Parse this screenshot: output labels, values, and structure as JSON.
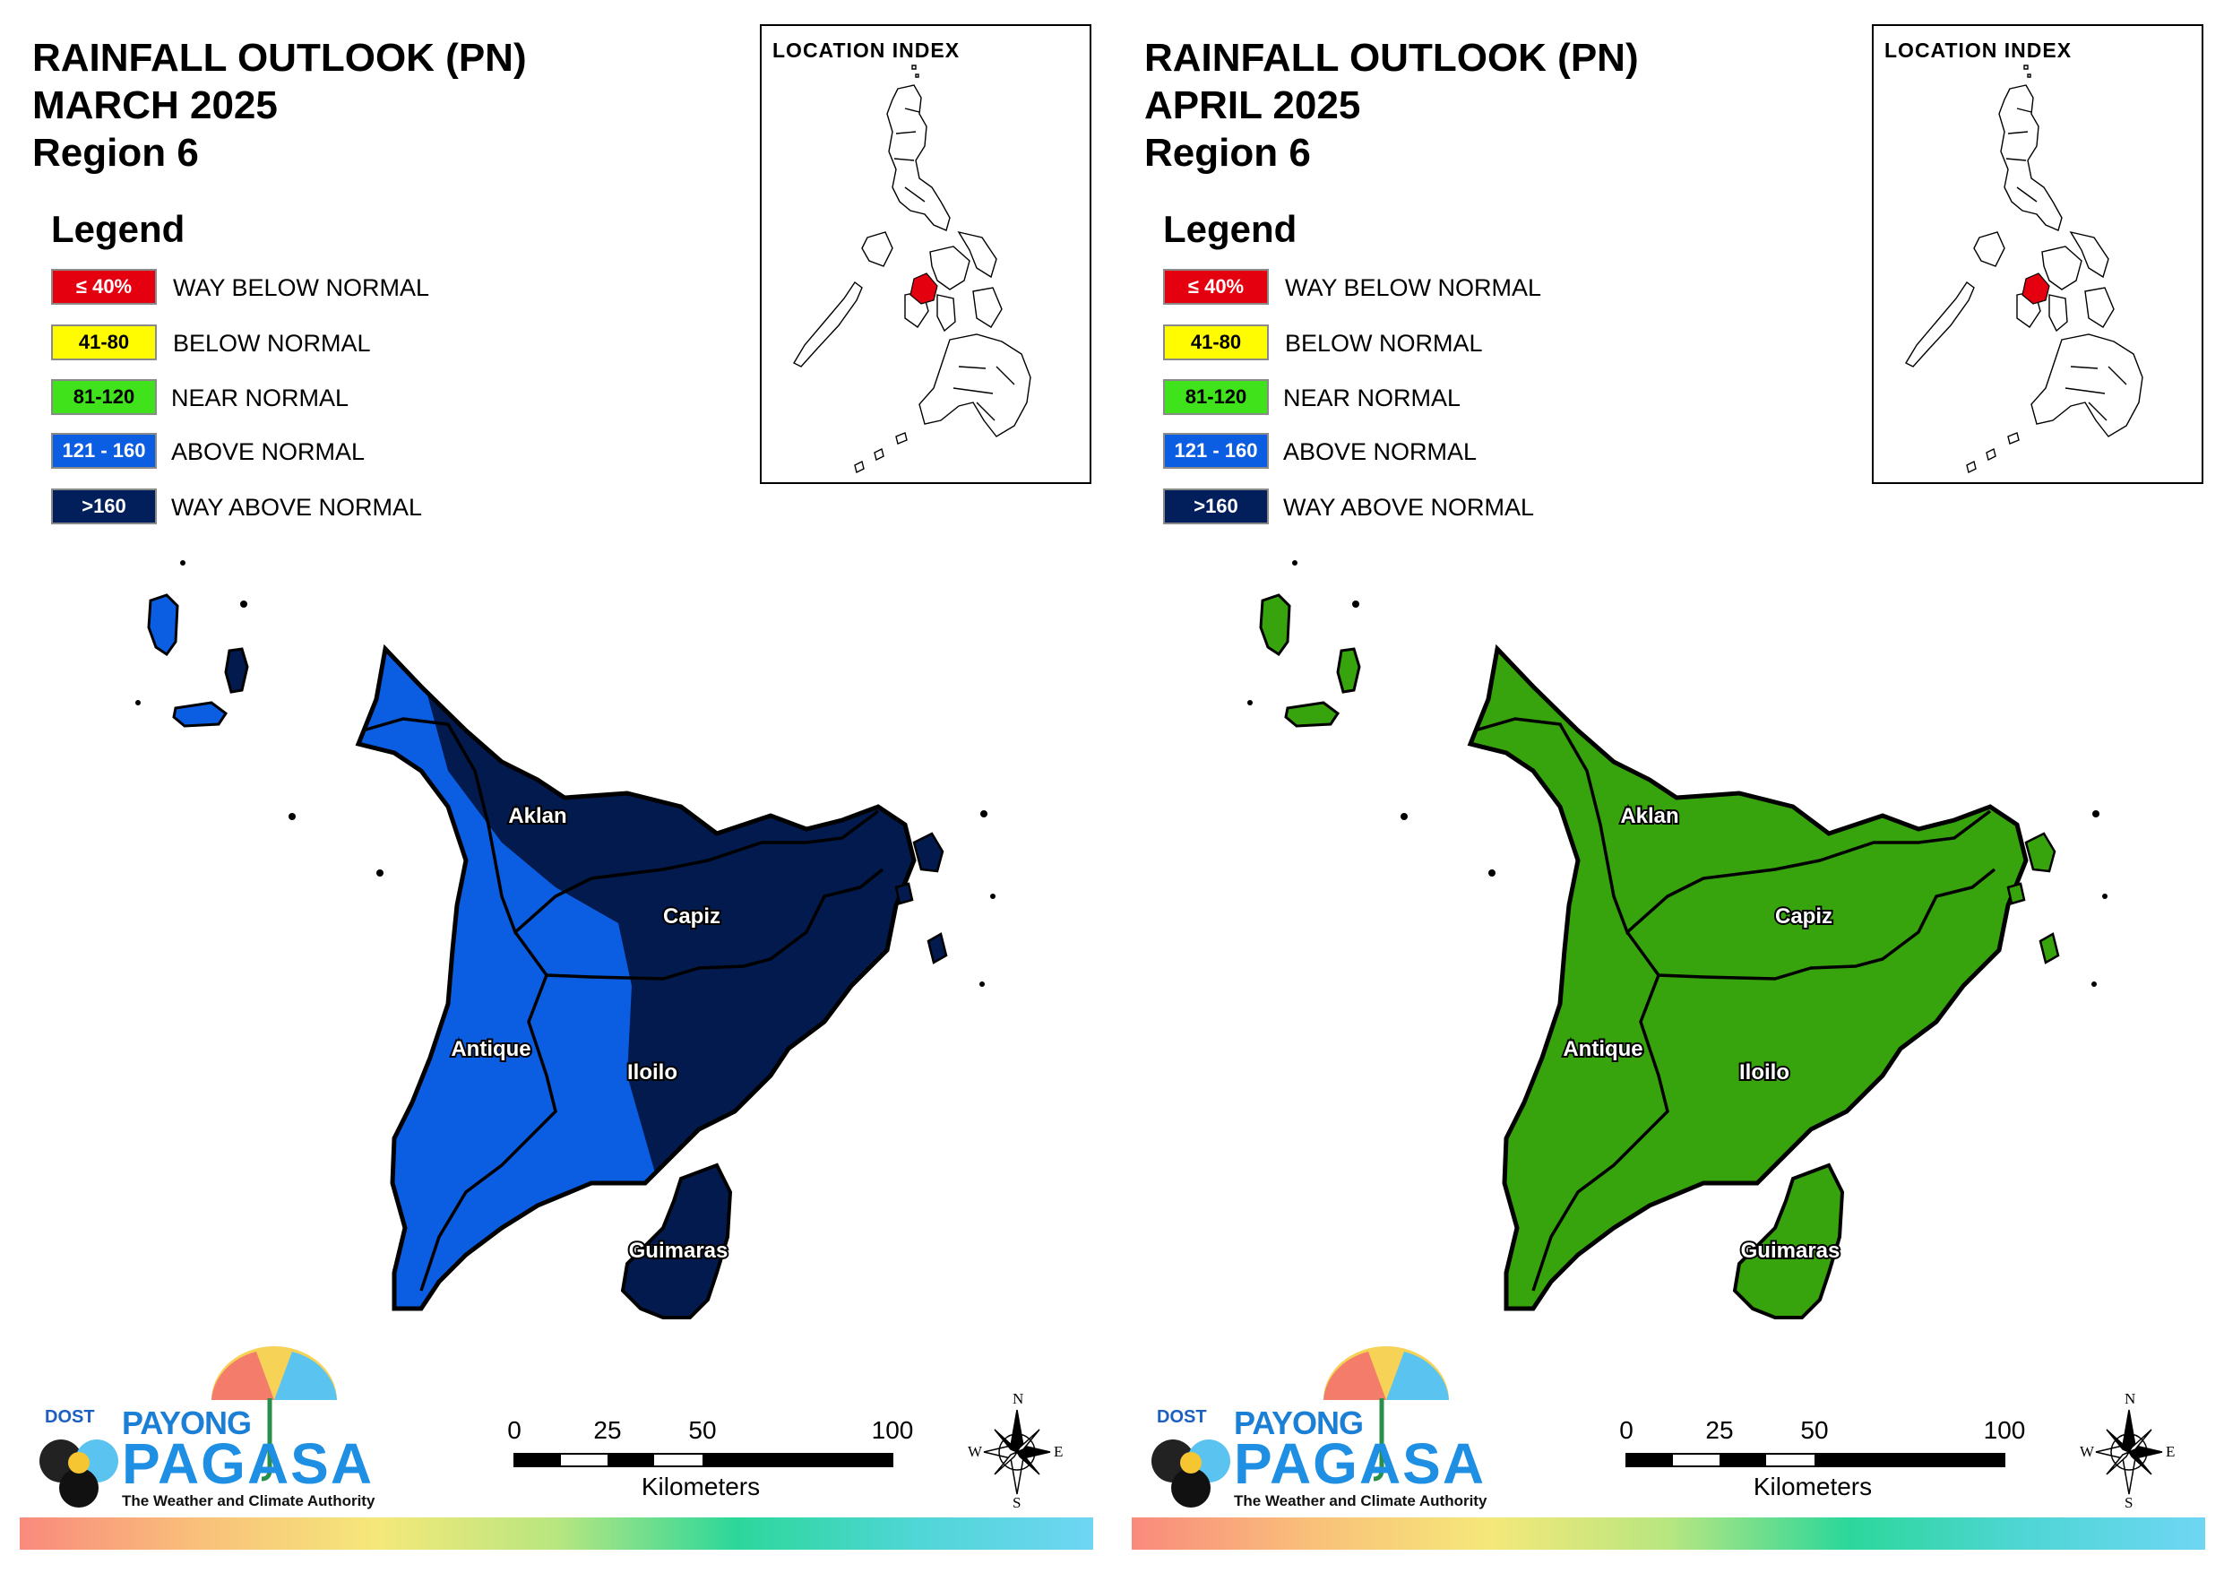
{
  "panels": [
    {
      "title_line1": "RAINFALL OUTLOOK (PN)",
      "title_line2": "MARCH 2025",
      "title_line3": "Region 6",
      "legend_title": "Legend",
      "location_index_title": "LOCATION INDEX",
      "provinces": [
        {
          "name": "Aklan",
          "category": "mixed-above-wayabove"
        },
        {
          "name": "Capiz",
          "category": "WAY ABOVE NORMAL"
        },
        {
          "name": "Antique",
          "category": "ABOVE NORMAL"
        },
        {
          "name": "Iloilo",
          "category": "mixed-above-wayabove"
        },
        {
          "name": "Guimaras",
          "category": "WAY ABOVE NORMAL"
        }
      ],
      "map_colors": {
        "primary": "#031a4e",
        "secondary": "#0b5ee1"
      }
    },
    {
      "title_line1": "RAINFALL OUTLOOK (PN)",
      "title_line2": "APRIL 2025",
      "title_line3": "Region 6",
      "legend_title": "Legend",
      "location_index_title": "LOCATION INDEX",
      "provinces": [
        {
          "name": "Aklan",
          "category": "NEAR NORMAL"
        },
        {
          "name": "Capiz",
          "category": "NEAR NORMAL"
        },
        {
          "name": "Antique",
          "category": "NEAR NORMAL"
        },
        {
          "name": "Iloilo",
          "category": "NEAR NORMAL"
        },
        {
          "name": "Guimaras",
          "category": "NEAR NORMAL"
        }
      ],
      "map_colors": {
        "primary": "#38a40d",
        "secondary": "#38a40d"
      }
    }
  ],
  "legend": [
    {
      "range": "≤ 40%",
      "label": "WAY BELOW NORMAL",
      "color": "#e5000f",
      "text_color": "#ffffff"
    },
    {
      "range": "41-80",
      "label": "BELOW NORMAL",
      "color": "#fffb00",
      "text_color": "#000000"
    },
    {
      "range": "81-120",
      "label": "NEAR NORMAL",
      "color": "#3fe21b",
      "text_color": "#000000"
    },
    {
      "range": "121 - 160",
      "label": "ABOVE NORMAL",
      "color": "#0b5ee1",
      "text_color": "#ffffff"
    },
    {
      "range": ">160",
      "label": "WAY ABOVE NORMAL",
      "color": "#021f5c",
      "text_color": "#ffffff"
    }
  ],
  "scale": {
    "ticks": [
      "0",
      "25",
      "50",
      "100"
    ],
    "units": "Kilometers"
  },
  "compass": {
    "n": "N",
    "s": "S",
    "e": "E",
    "w": "W"
  },
  "logo": {
    "dost": "DOST",
    "payong": "PAYONG",
    "pagasa": "PAGASA",
    "tagline": "The Weather and Climate Authority"
  },
  "inset_highlight_color": "#e5000f"
}
